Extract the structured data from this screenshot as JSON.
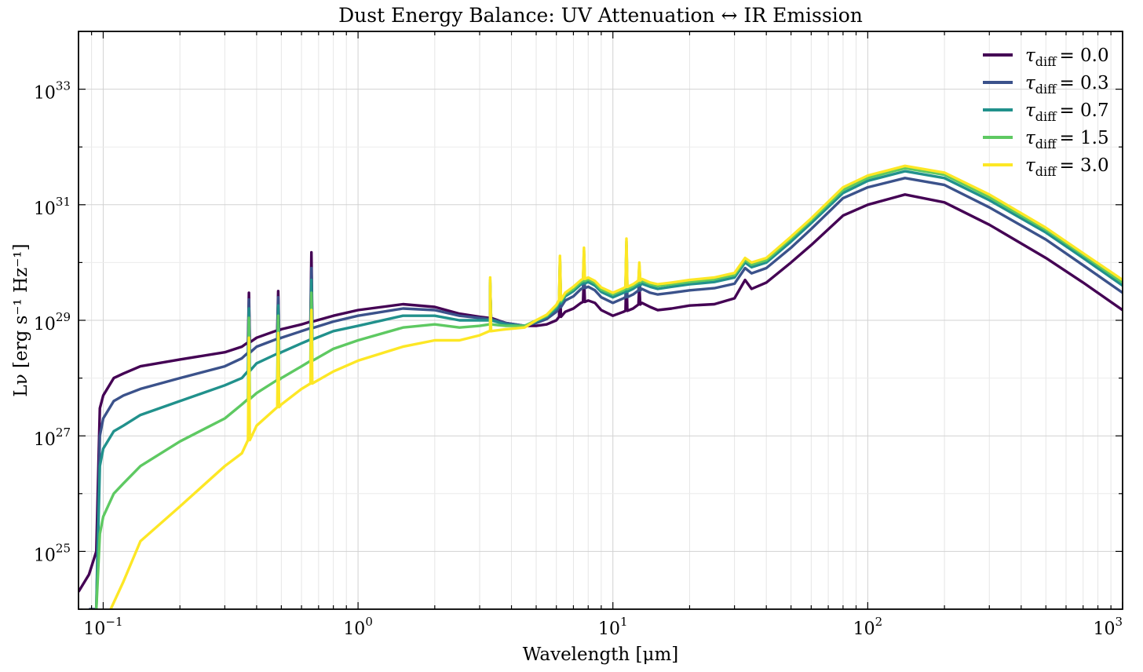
{
  "chart_data": {
    "type": "line",
    "title": "Dust Energy Balance: UV Attenuation ↔ IR Emission",
    "xlabel": "Wavelength [μm]",
    "ylabel": "Lν [erg s⁻¹ Hz⁻¹]",
    "xscale": "log",
    "yscale": "log",
    "xlim": [
      0.08,
      1000
    ],
    "ylim": [
      1e+24,
      1e+34
    ],
    "grid": true,
    "legend_position": "top-right",
    "x_ticks": [
      {
        "value": 0.1,
        "base": "10",
        "exp": "−1"
      },
      {
        "value": 1,
        "base": "10",
        "exp": "0"
      },
      {
        "value": 10,
        "base": "10",
        "exp": "1"
      },
      {
        "value": 100,
        "base": "10",
        "exp": "2"
      },
      {
        "value": 1000,
        "base": "10",
        "exp": "3"
      }
    ],
    "y_ticks": [
      {
        "value": 1e+25,
        "base": "10",
        "exp": "25"
      },
      {
        "value": 1e+27,
        "base": "10",
        "exp": "27"
      },
      {
        "value": 1e+29,
        "base": "10",
        "exp": "29"
      },
      {
        "value": 1e+31,
        "base": "10",
        "exp": "31"
      },
      {
        "value": 1e+33,
        "base": "10",
        "exp": "33"
      }
    ],
    "series": [
      {
        "name": "τdiff = 0.0",
        "sym": "τ",
        "sub": "diff",
        "eq": "= 0.0",
        "color": "#440154",
        "points": [
          [
            0.08,
            2e+24
          ],
          [
            0.088,
            4e+24
          ],
          [
            0.094,
            1e+25
          ],
          [
            0.097,
            3e+27
          ],
          [
            0.1,
            5e+27
          ],
          [
            0.11,
            1e+28
          ],
          [
            0.12,
            1.2e+28
          ],
          [
            0.14,
            1.6e+28
          ],
          [
            0.2,
            2.1e+28
          ],
          [
            0.3,
            2.8e+28
          ],
          [
            0.35,
            3.5e+28
          ],
          [
            0.4,
            5e+28
          ],
          [
            0.5,
            7e+28
          ],
          [
            0.6,
            8.5e+28
          ],
          [
            0.8,
            1.2e+29
          ],
          [
            1,
            1.5e+29
          ],
          [
            1.5,
            1.9e+29
          ],
          [
            2,
            1.7e+29
          ],
          [
            2.5,
            1.3e+29
          ],
          [
            3,
            1.15e+29
          ],
          [
            3.3,
            1.1e+29
          ],
          [
            3.8,
            9e+28
          ],
          [
            4.5,
            8e+28
          ],
          [
            5,
            8e+28
          ],
          [
            5.5,
            8.5e+28
          ],
          [
            6,
            1e+29
          ],
          [
            6.5,
            1.4e+29
          ],
          [
            7,
            1.6e+29
          ],
          [
            7.5,
            2e+29
          ],
          [
            8,
            2.2e+29
          ],
          [
            8.5,
            2e+29
          ],
          [
            9,
            1.5e+29
          ],
          [
            10,
            1.2e+29
          ],
          [
            11,
            1.4e+29
          ],
          [
            12,
            1.6e+29
          ],
          [
            13,
            2e+29
          ],
          [
            14,
            1.7e+29
          ],
          [
            15,
            1.5e+29
          ],
          [
            17,
            1.6e+29
          ],
          [
            20,
            1.8e+29
          ],
          [
            25,
            1.9e+29
          ],
          [
            30,
            2.4e+29
          ],
          [
            33,
            5e+29
          ],
          [
            35,
            3.5e+29
          ],
          [
            40,
            4.5e+29
          ],
          [
            50,
            1e+30
          ],
          [
            60,
            2e+30
          ],
          [
            80,
            6.5e+30
          ],
          [
            100,
            1e+31
          ],
          [
            140,
            1.5e+31
          ],
          [
            200,
            1.1e+31
          ],
          [
            300,
            4.5e+30
          ],
          [
            500,
            1.2e+30
          ],
          [
            700,
            4.5e+29
          ],
          [
            1000,
            1.5e+29
          ]
        ]
      },
      {
        "name": "τdiff = 0.3",
        "sym": "τ",
        "sub": "diff",
        "eq": "= 0.3",
        "color": "#3b528b",
        "points": [
          [
            0.088,
            1e+24
          ],
          [
            0.094,
            1e+24
          ],
          [
            0.097,
            1e+27
          ],
          [
            0.1,
            2e+27
          ],
          [
            0.11,
            4e+27
          ],
          [
            0.12,
            5e+27
          ],
          [
            0.14,
            6.5e+27
          ],
          [
            0.2,
            1e+28
          ],
          [
            0.3,
            1.6e+28
          ],
          [
            0.35,
            2.2e+28
          ],
          [
            0.4,
            3.5e+28
          ],
          [
            0.5,
            5e+28
          ],
          [
            0.6,
            6.5e+28
          ],
          [
            0.8,
            9.5e+28
          ],
          [
            1,
            1.2e+29
          ],
          [
            1.5,
            1.6e+29
          ],
          [
            2,
            1.5e+29
          ],
          [
            2.5,
            1.2e+29
          ],
          [
            3,
            1.1e+29
          ],
          [
            3.3,
            1.05e+29
          ],
          [
            3.8,
            9e+28
          ],
          [
            4.5,
            8e+28
          ],
          [
            5,
            9e+28
          ],
          [
            5.5,
            1.05e+29
          ],
          [
            6,
            1.4e+29
          ],
          [
            6.5,
            2.2e+29
          ],
          [
            7,
            2.6e+29
          ],
          [
            7.5,
            3.5e+29
          ],
          [
            8,
            3.8e+29
          ],
          [
            8.5,
            3.3e+29
          ],
          [
            9,
            2.5e+29
          ],
          [
            10,
            2e+29
          ],
          [
            11,
            2.4e+29
          ],
          [
            12,
            2.8e+29
          ],
          [
            13,
            3.5e+29
          ],
          [
            14,
            3e+29
          ],
          [
            15,
            2.8e+29
          ],
          [
            17,
            3e+29
          ],
          [
            20,
            3.3e+29
          ],
          [
            25,
            3.6e+29
          ],
          [
            30,
            4.3e+29
          ],
          [
            33,
            8e+29
          ],
          [
            35,
            6.5e+29
          ],
          [
            40,
            8e+29
          ],
          [
            50,
            1.8e+30
          ],
          [
            60,
            3.8e+30
          ],
          [
            80,
            1.3e+31
          ],
          [
            100,
            2e+31
          ],
          [
            140,
            2.9e+31
          ],
          [
            200,
            2.2e+31
          ],
          [
            300,
            9e+30
          ],
          [
            500,
            2.5e+30
          ],
          [
            700,
            9e+29
          ],
          [
            1000,
            3e+29
          ]
        ]
      },
      {
        "name": "τdiff = 0.7",
        "sym": "τ",
        "sub": "diff",
        "eq": "= 0.7",
        "color": "#21918c",
        "points": [
          [
            0.094,
            1e+24
          ],
          [
            0.097,
            3e+26
          ],
          [
            0.1,
            6e+26
          ],
          [
            0.11,
            1.2e+27
          ],
          [
            0.12,
            1.5e+27
          ],
          [
            0.14,
            2.3e+27
          ],
          [
            0.2,
            4e+27
          ],
          [
            0.3,
            7.5e+27
          ],
          [
            0.35,
            1e+28
          ],
          [
            0.4,
            1.8e+28
          ],
          [
            0.5,
            2.8e+28
          ],
          [
            0.6,
            4e+28
          ],
          [
            0.8,
            6.5e+28
          ],
          [
            1,
            8e+28
          ],
          [
            1.5,
            1.2e+29
          ],
          [
            2,
            1.2e+29
          ],
          [
            2.5,
            1e+29
          ],
          [
            3,
            1e+29
          ],
          [
            3.3,
            1e+29
          ],
          [
            3.8,
            8.5e+28
          ],
          [
            4.5,
            8e+28
          ],
          [
            5,
            9.5e+28
          ],
          [
            5.5,
            1.15e+29
          ],
          [
            6,
            1.6e+29
          ],
          [
            6.5,
            2.6e+29
          ],
          [
            7,
            3.2e+29
          ],
          [
            7.5,
            4.2e+29
          ],
          [
            8,
            4.6e+29
          ],
          [
            8.5,
            4e+29
          ],
          [
            9,
            3.1e+29
          ],
          [
            10,
            2.5e+29
          ],
          [
            11,
            3e+29
          ],
          [
            12,
            3.5e+29
          ],
          [
            13,
            4.3e+29
          ],
          [
            14,
            3.8e+29
          ],
          [
            15,
            3.5e+29
          ],
          [
            17,
            3.8e+29
          ],
          [
            20,
            4.2e+29
          ],
          [
            25,
            4.6e+29
          ],
          [
            30,
            5.5e+29
          ],
          [
            33,
            1e+30
          ],
          [
            35,
            8.3e+29
          ],
          [
            40,
            1e+30
          ],
          [
            50,
            2.3e+30
          ],
          [
            60,
            4.8e+30
          ],
          [
            80,
            1.6e+31
          ],
          [
            100,
            2.6e+31
          ],
          [
            140,
            3.8e+31
          ],
          [
            200,
            2.9e+31
          ],
          [
            300,
            1.2e+31
          ],
          [
            500,
            3.3e+30
          ],
          [
            700,
            1.2e+30
          ],
          [
            1000,
            4e+29
          ]
        ]
      },
      {
        "name": "τdiff = 1.5",
        "sym": "τ",
        "sub": "diff",
        "eq": "= 1.5",
        "color": "#5ec962",
        "points": [
          [
            0.094,
            1e+24
          ],
          [
            0.097,
            2e+25
          ],
          [
            0.1,
            4e+25
          ],
          [
            0.11,
            1e+26
          ],
          [
            0.12,
            1.5e+26
          ],
          [
            0.14,
            3e+26
          ],
          [
            0.2,
            8e+26
          ],
          [
            0.3,
            2e+27
          ],
          [
            0.35,
            3.5e+27
          ],
          [
            0.4,
            5.5e+27
          ],
          [
            0.5,
            1e+28
          ],
          [
            0.6,
            1.6e+28
          ],
          [
            0.8,
            3.2e+28
          ],
          [
            1,
            4.5e+28
          ],
          [
            1.5,
            7.5e+28
          ],
          [
            2,
            8.5e+28
          ],
          [
            2.5,
            7.5e+28
          ],
          [
            3,
            8e+28
          ],
          [
            3.3,
            8.5e+28
          ],
          [
            3.8,
            8e+28
          ],
          [
            4.5,
            8e+28
          ],
          [
            5,
            1e+29
          ],
          [
            5.5,
            1.2e+29
          ],
          [
            6,
            1.75e+29
          ],
          [
            6.5,
            2.8e+29
          ],
          [
            7,
            3.5e+29
          ],
          [
            7.5,
            4.6e+29
          ],
          [
            8,
            5.1e+29
          ],
          [
            8.5,
            4.4e+29
          ],
          [
            9,
            3.4e+29
          ],
          [
            10,
            2.8e+29
          ],
          [
            11,
            3.3e+29
          ],
          [
            12,
            3.9e+29
          ],
          [
            13,
            4.8e+29
          ],
          [
            14,
            4.2e+29
          ],
          [
            15,
            3.9e+29
          ],
          [
            17,
            4.2e+29
          ],
          [
            20,
            4.6e+29
          ],
          [
            25,
            5.1e+29
          ],
          [
            30,
            6.1e+29
          ],
          [
            33,
            1.1e+30
          ],
          [
            35,
            9.2e+29
          ],
          [
            40,
            1.1e+30
          ],
          [
            50,
            2.6e+30
          ],
          [
            60,
            5.4e+30
          ],
          [
            80,
            1.8e+31
          ],
          [
            100,
            2.9e+31
          ],
          [
            140,
            4.3e+31
          ],
          [
            200,
            3.3e+31
          ],
          [
            300,
            1.35e+31
          ],
          [
            500,
            3.7e+30
          ],
          [
            700,
            1.35e+30
          ],
          [
            1000,
            4.5e+29
          ]
        ]
      },
      {
        "name": "τdiff = 3.0",
        "sym": "τ",
        "sub": "diff",
        "eq": "= 3.0",
        "color": "#fde725",
        "points": [
          [
            0.107,
            1e+24
          ],
          [
            0.12,
            3e+24
          ],
          [
            0.14,
            1.5e+25
          ],
          [
            0.2,
            6e+25
          ],
          [
            0.3,
            3e+26
          ],
          [
            0.35,
            5e+26
          ],
          [
            0.4,
            1.5e+27
          ],
          [
            0.5,
            3.5e+27
          ],
          [
            0.6,
            6.5e+27
          ],
          [
            0.8,
            1.3e+28
          ],
          [
            1,
            2e+28
          ],
          [
            1.5,
            3.5e+28
          ],
          [
            2,
            4.5e+28
          ],
          [
            2.5,
            4.5e+28
          ],
          [
            3,
            5.5e+28
          ],
          [
            3.3,
            6.5e+28
          ],
          [
            3.8,
            7e+28
          ],
          [
            4.5,
            7.5e+28
          ],
          [
            5,
            1e+29
          ],
          [
            5.5,
            1.25e+29
          ],
          [
            6,
            1.85e+29
          ],
          [
            6.5,
            3e+29
          ],
          [
            7,
            3.8e+29
          ],
          [
            7.5,
            5e+29
          ],
          [
            8,
            5.5e+29
          ],
          [
            8.5,
            4.8e+29
          ],
          [
            9,
            3.7e+29
          ],
          [
            10,
            3e+29
          ],
          [
            11,
            3.6e+29
          ],
          [
            12,
            4.2e+29
          ],
          [
            13,
            5.2e+29
          ],
          [
            14,
            4.5e+29
          ],
          [
            15,
            4.2e+29
          ],
          [
            17,
            4.5e+29
          ],
          [
            20,
            5e+29
          ],
          [
            25,
            5.5e+29
          ],
          [
            30,
            6.6e+29
          ],
          [
            33,
            1.2e+30
          ],
          [
            35,
            1e+30
          ],
          [
            40,
            1.2e+30
          ],
          [
            50,
            2.8e+30
          ],
          [
            60,
            5.8e+30
          ],
          [
            80,
            2e+31
          ],
          [
            100,
            3.2e+31
          ],
          [
            140,
            4.7e+31
          ],
          [
            200,
            3.6e+31
          ],
          [
            300,
            1.5e+31
          ],
          [
            500,
            4e+30
          ],
          [
            700,
            1.45e+30
          ],
          [
            1000,
            5e+29
          ]
        ]
      }
    ],
    "spikes": [
      {
        "x": 0.373,
        "y": [
          3e+29,
          2.3e+29,
          1.6e+29,
          1.1e+29,
          5e+28
        ]
      },
      {
        "x": 0.486,
        "y": [
          3.2e+29,
          2.5e+29,
          1.8e+29,
          1.2e+29,
          6e+28
        ]
      },
      {
        "x": 0.656,
        "y": [
          1.5e+30,
          8e+29,
          5e+29,
          3e+29,
          1.5e+29
        ]
      },
      {
        "x": 3.3,
        "y": [
          3.5e+29,
          4e+29,
          4.5e+29,
          5e+29,
          5.5e+29
        ]
      },
      {
        "x": 6.2,
        "y": [
          5e+29,
          9e+29,
          1.1e+30,
          1.2e+30,
          1.3e+30
        ]
      },
      {
        "x": 7.7,
        "y": [
          6e+29,
          1.2e+30,
          1.4e+30,
          1.6e+30,
          1.8e+30
        ]
      },
      {
        "x": 11.3,
        "y": [
          8e+29,
          1.6e+30,
          2e+30,
          2.3e+30,
          2.6e+30
        ]
      },
      {
        "x": 12.7,
        "y": [
          4e+29,
          7e+29,
          8e+29,
          9e+29,
          1e+30
        ]
      }
    ]
  }
}
